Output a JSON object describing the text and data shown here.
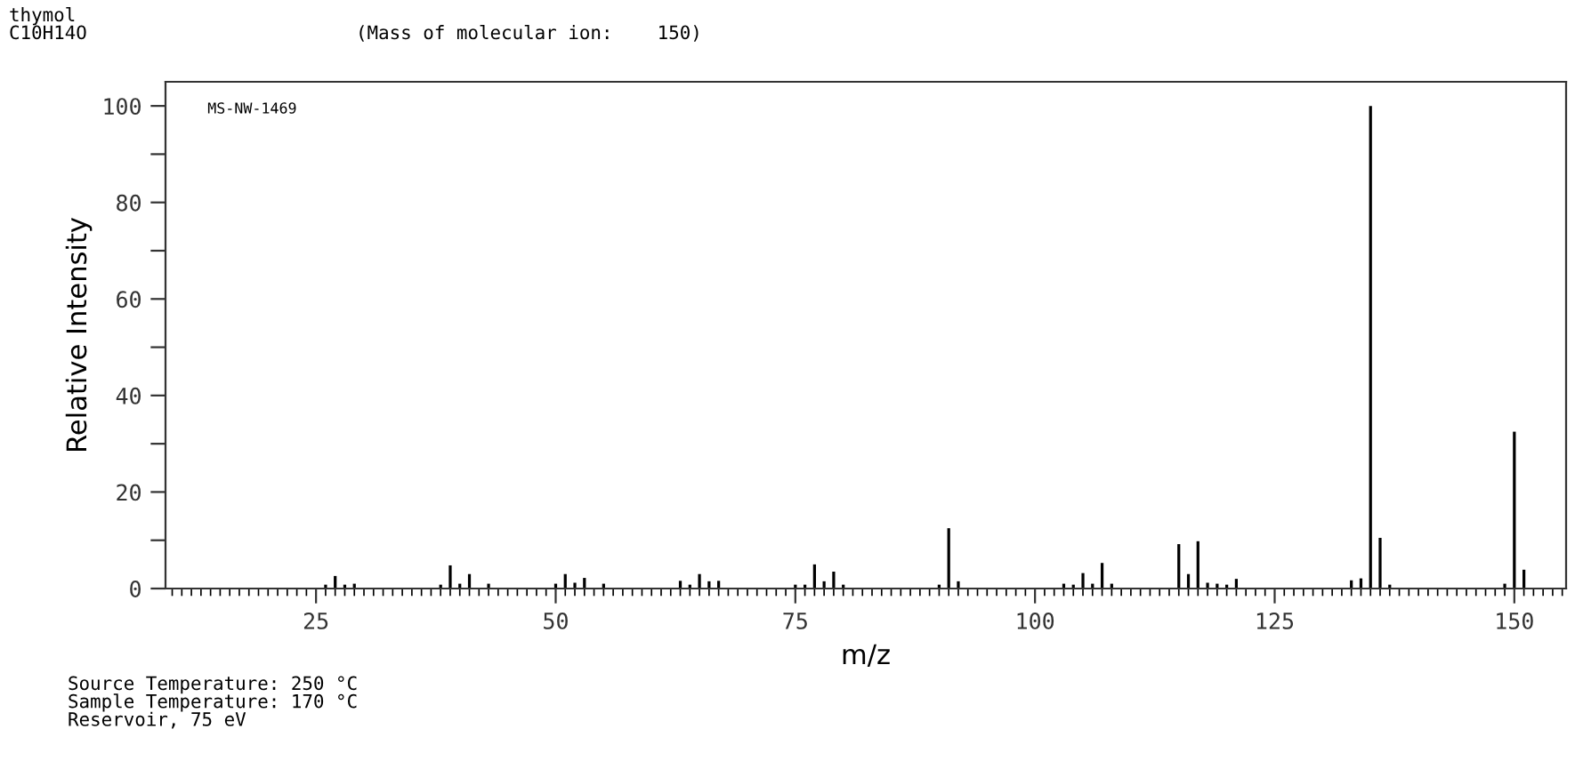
{
  "chart_data": {
    "type": "bar",
    "title": "thymol",
    "subtitle": "C10H14O",
    "annotations": [
      "(Mass of molecular ion:    150)",
      "MS-NW-1469",
      "Source Temperature: 250 °C\nSample Temperature: 170 °C\nReservoir, 75 eV"
    ],
    "xlabel": "m/z",
    "ylabel": "Relative Intensity",
    "x": [
      26,
      27,
      28,
      29,
      38,
      39,
      40,
      41,
      43,
      50,
      51,
      52,
      53,
      55,
      63,
      64,
      65,
      66,
      67,
      75,
      76,
      77,
      78,
      79,
      80,
      90,
      91,
      92,
      103,
      104,
      105,
      106,
      107,
      108,
      115,
      116,
      117,
      118,
      119,
      120,
      121,
      133,
      134,
      135,
      136,
      137,
      149,
      150,
      151
    ],
    "values": [
      0.8,
      2.6,
      0.8,
      1,
      0.8,
      4.8,
      1,
      3,
      1,
      1,
      3,
      1.2,
      2.2,
      1,
      1.6,
      0.8,
      3,
      1.5,
      1.6,
      0.8,
      0.8,
      5,
      1.5,
      3.5,
      0.8,
      0.8,
      12.5,
      1.5,
      1,
      0.8,
      3.2,
      1,
      5.3,
      1,
      9.2,
      3,
      9.8,
      1.2,
      1,
      0.8,
      2,
      1.7,
      2.1,
      100,
      10.5,
      0.8,
      1,
      32.5,
      3.9
    ],
    "color": "#000000",
    "xlim": [
      9.3,
      155.4
    ],
    "ylim": [
      0,
      105
    ],
    "xticks": [
      25,
      50,
      75,
      100,
      125,
      150
    ],
    "yticks": [
      0,
      {
        "value": 10,
        "label": null
      },
      20,
      {
        "value": 30,
        "label": null
      },
      40,
      {
        "value": 50,
        "label": null
      },
      60,
      {
        "value": 70,
        "label": null
      },
      80,
      {
        "value": 90,
        "label": null
      },
      100
    ],
    "grid": false
  }
}
